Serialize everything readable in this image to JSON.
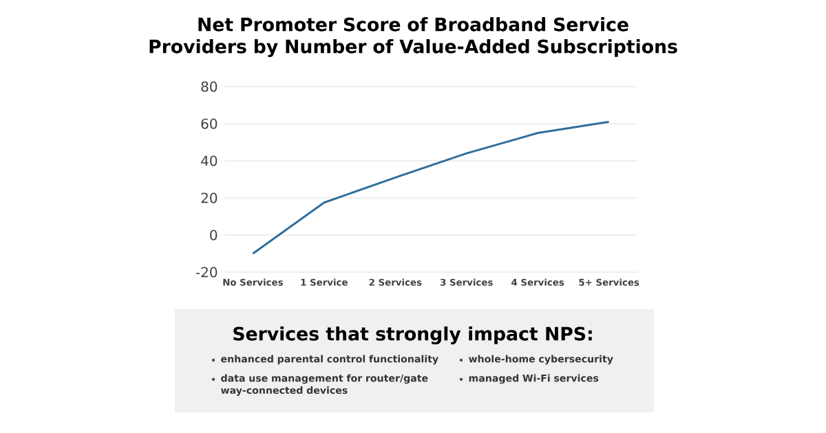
{
  "chart_data": {
    "type": "line",
    "title": "Net Promoter Score of Broadband Service Providers by Number of Value-Added Subscriptions",
    "categories": [
      "No Services",
      "1 Service",
      "2 Services",
      "3 Services",
      "4 Services",
      "5+ Services"
    ],
    "values": [
      -10,
      17.5,
      31,
      44,
      55,
      61
    ],
    "color": "#2e6e9e",
    "ylim": [
      -20,
      80
    ],
    "yticks": [
      -20,
      0,
      20,
      40,
      60,
      80
    ],
    "grid": "y",
    "marker": "none",
    "line_style": "solid",
    "annotations": [
      "Services that strongly impact NPS:",
      "enhanced parental control functionality",
      "whole-home cybersecurity",
      "data use management for router/gate way-connected devices",
      "managed Wi-Fi services"
    ]
  }
}
